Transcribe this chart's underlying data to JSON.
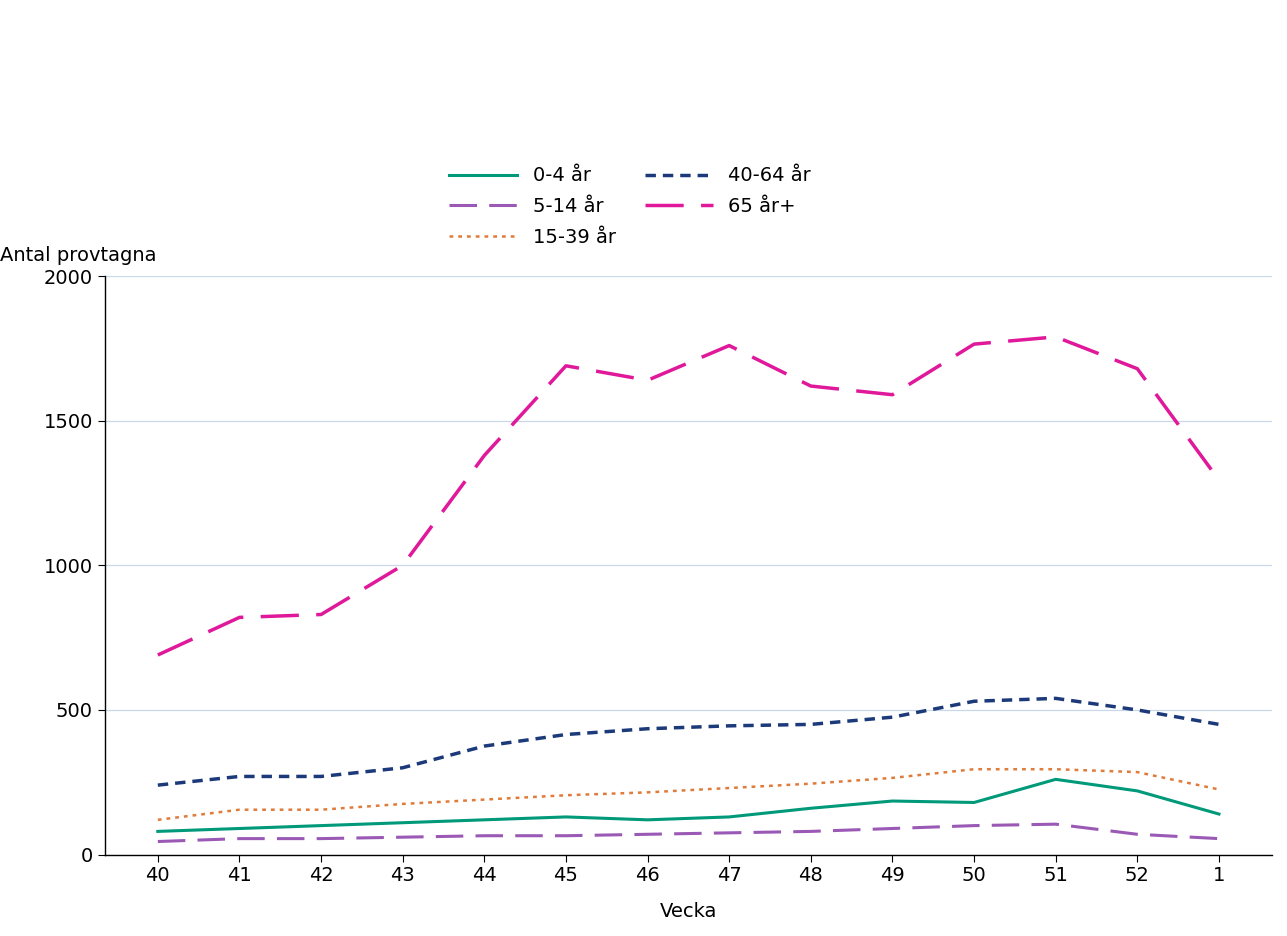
{
  "weeks": [
    40,
    41,
    42,
    43,
    44,
    45,
    46,
    47,
    48,
    49,
    50,
    51,
    52,
    1
  ],
  "series": {
    "0-4 år": {
      "values": [
        80,
        90,
        100,
        110,
        120,
        130,
        120,
        130,
        160,
        185,
        180,
        260,
        220,
        140
      ],
      "color": "#00997a",
      "linestyle": "solid",
      "linewidth": 2.2
    },
    "5-14 år": {
      "values": [
        45,
        55,
        55,
        60,
        65,
        65,
        70,
        75,
        80,
        90,
        100,
        105,
        70,
        55
      ],
      "color": "#9b59b6",
      "linestyle": "dashed",
      "linewidth": 2.2,
      "dash": [
        9,
        4
      ]
    },
    "15-39 år": {
      "values": [
        120,
        155,
        155,
        175,
        190,
        205,
        215,
        230,
        245,
        265,
        295,
        295,
        285,
        225
      ],
      "color": "#e07b3a",
      "linestyle": "dotted",
      "linewidth": 1.8
    },
    "40-64 år": {
      "values": [
        240,
        270,
        270,
        300,
        375,
        415,
        435,
        445,
        450,
        475,
        530,
        540,
        500,
        450
      ],
      "color": "#1c3a7a",
      "linestyle": "dotted",
      "linewidth": 2.5,
      "dot_dash": [
        3,
        2
      ]
    },
    "65 år+": {
      "values": [
        690,
        820,
        830,
        1000,
        1380,
        1690,
        1640,
        1760,
        1620,
        1590,
        1765,
        1790,
        1680,
        1295
      ],
      "color": "#e0189a",
      "linestyle": "dashed",
      "linewidth": 2.5,
      "dash": [
        11,
        5
      ]
    }
  },
  "xlabel": "Vecka",
  "ylabel": "Antal provtagna",
  "ylim": [
    0,
    2000
  ],
  "yticks": [
    0,
    500,
    1000,
    1500,
    2000
  ],
  "background_color": "#ffffff",
  "grid_color": "#c8d8e8",
  "axis_fontsize": 14,
  "tick_fontsize": 14,
  "legend_fontsize": 14
}
